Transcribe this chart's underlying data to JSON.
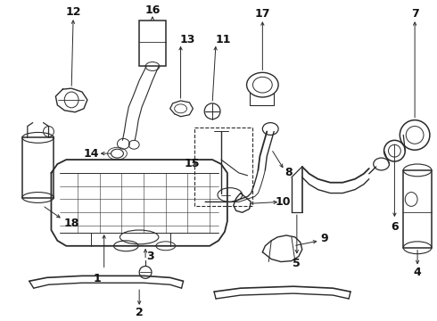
{
  "bg_color": "#ffffff",
  "line_color": "#2a2a2a",
  "label_color": "#111111",
  "font_size": 9
}
